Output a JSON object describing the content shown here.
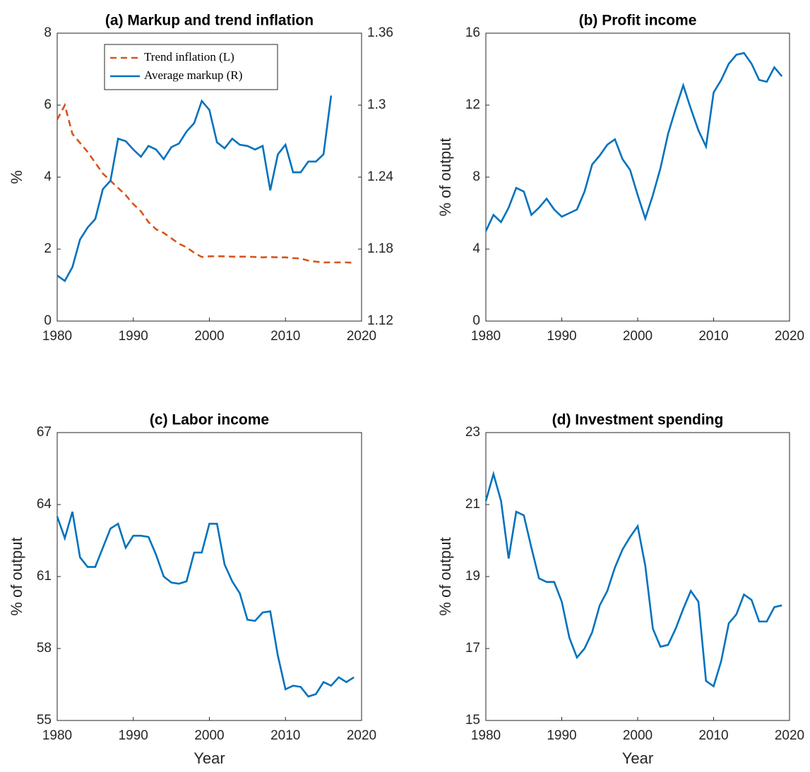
{
  "chart_data": [
    {
      "type": "line",
      "title": "(a) Markup and trend inflation",
      "ylabel": "%",
      "x": [
        1980,
        1981,
        1982,
        1983,
        1984,
        1985,
        1986,
        1987,
        1988,
        1989,
        1990,
        1991,
        1992,
        1993,
        1994,
        1995,
        1996,
        1997,
        1998,
        1999,
        2000,
        2001,
        2002,
        2003,
        2004,
        2005,
        2006,
        2007,
        2008,
        2009,
        2010,
        2011,
        2012,
        2013,
        2014,
        2015,
        2016,
        2017,
        2018,
        2019
      ],
      "series": [
        {
          "name": "Trend inflation (L)",
          "color": "#d95319",
          "linestyle": "dashed",
          "values": [
            5.6,
            6.0,
            5.2,
            4.95,
            4.7,
            4.4,
            4.1,
            3.9,
            3.7,
            3.5,
            3.25,
            3.05,
            2.75,
            2.55,
            2.45,
            2.3,
            2.15,
            2.05,
            1.9,
            1.78,
            1.8,
            1.8,
            1.8,
            1.79,
            1.79,
            1.79,
            1.78,
            1.77,
            1.78,
            1.77,
            1.77,
            1.75,
            1.74,
            1.68,
            1.65,
            1.63,
            1.63,
            1.63,
            1.63,
            1.62
          ]
        },
        {
          "name": "Average markup (R)",
          "color": "#0072bd",
          "linestyle": "solid",
          "axis": "y2",
          "values": [
            1.158,
            1.1535,
            1.165,
            1.188,
            1.198,
            1.205,
            1.23,
            1.237,
            1.272,
            1.27,
            1.263,
            1.257,
            1.266,
            1.263,
            1.255,
            1.265,
            1.268,
            1.278,
            1.285,
            1.3035,
            1.296,
            1.269,
            1.264,
            1.272,
            1.267,
            1.266,
            1.263,
            1.266,
            1.229,
            1.259,
            1.267,
            1.244,
            1.244,
            1.253,
            1.253,
            1.259,
            1.308,
            null,
            null,
            null
          ]
        }
      ],
      "xlim": [
        1980,
        2020
      ],
      "xticks": [
        1980,
        1990,
        2000,
        2010,
        2020
      ],
      "ylim": [
        0,
        8
      ],
      "yticks": [
        0,
        2,
        4,
        6,
        8
      ],
      "y2lim": [
        1.12,
        1.36
      ],
      "y2ticks": [
        1.12,
        1.18,
        1.24,
        1.3,
        1.36
      ],
      "legend": "north"
    },
    {
      "type": "line",
      "title": "(b) Profit income",
      "ylabel": "% of output",
      "x": [
        1980,
        1981,
        1982,
        1983,
        1984,
        1985,
        1986,
        1987,
        1988,
        1989,
        1990,
        1991,
        1992,
        1993,
        1994,
        1995,
        1996,
        1997,
        1998,
        1999,
        2000,
        2001,
        2002,
        2003,
        2004,
        2005,
        2006,
        2007,
        2008,
        2009,
        2010,
        2011,
        2012,
        2013,
        2014,
        2015,
        2016,
        2017,
        2018,
        2019
      ],
      "series": [
        {
          "color": "#0072bd",
          "linestyle": "solid",
          "values": [
            5.0,
            5.9,
            5.5,
            6.3,
            7.4,
            7.2,
            5.9,
            6.3,
            6.8,
            6.2,
            5.8,
            6.0,
            6.2,
            7.2,
            8.7,
            9.2,
            9.8,
            10.1,
            9.0,
            8.4,
            7.0,
            5.7,
            7.0,
            8.5,
            10.4,
            11.8,
            13.1,
            11.8,
            10.6,
            9.7,
            12.7,
            13.4,
            14.3,
            14.8,
            14.9,
            14.3,
            13.4,
            13.3,
            14.1,
            13.6
          ]
        }
      ],
      "xlim": [
        1980,
        2020
      ],
      "xticks": [
        1980,
        1990,
        2000,
        2010,
        2020
      ],
      "ylim": [
        0,
        16
      ],
      "yticks": [
        0,
        4,
        8,
        12,
        16
      ]
    },
    {
      "type": "line",
      "title": "(c) Labor income",
      "ylabel": "% of output",
      "xlabel": "Year",
      "x": [
        1980,
        1981,
        1982,
        1983,
        1984,
        1985,
        1986,
        1987,
        1988,
        1989,
        1990,
        1991,
        1992,
        1993,
        1994,
        1995,
        1996,
        1997,
        1998,
        1999,
        2000,
        2001,
        2002,
        2003,
        2004,
        2005,
        2006,
        2007,
        2008,
        2009,
        2010,
        2011,
        2012,
        2013,
        2014,
        2015,
        2016,
        2017,
        2018,
        2019
      ],
      "series": [
        {
          "color": "#0072bd",
          "linestyle": "solid",
          "values": [
            63.5,
            62.6,
            63.7,
            61.8,
            61.4,
            61.4,
            62.2,
            63.0,
            63.2,
            62.2,
            62.7,
            62.7,
            62.65,
            61.9,
            61.0,
            60.75,
            60.7,
            60.8,
            62.0,
            62.0,
            63.2,
            63.2,
            61.5,
            60.8,
            60.3,
            59.2,
            59.15,
            59.5,
            59.55,
            57.7,
            56.3,
            56.45,
            56.4,
            56.0,
            56.1,
            56.6,
            56.45,
            56.8,
            56.6,
            56.8
          ]
        }
      ],
      "xlim": [
        1980,
        2020
      ],
      "xticks": [
        1980,
        1990,
        2000,
        2010,
        2020
      ],
      "ylim": [
        55,
        67
      ],
      "yticks": [
        55,
        58,
        61,
        64,
        67
      ]
    },
    {
      "type": "line",
      "title": "(d) Investment spending",
      "ylabel": "% of output",
      "xlabel": "Year",
      "x": [
        1980,
        1981,
        1982,
        1983,
        1984,
        1985,
        1986,
        1987,
        1988,
        1989,
        1990,
        1991,
        1992,
        1993,
        1994,
        1995,
        1996,
        1997,
        1998,
        1999,
        2000,
        2001,
        2002,
        2003,
        2004,
        2005,
        2006,
        2007,
        2008,
        2009,
        2010,
        2011,
        2012,
        2013,
        2014,
        2015,
        2016,
        2017,
        2018,
        2019
      ],
      "series": [
        {
          "color": "#0072bd",
          "linestyle": "solid",
          "values": [
            21.1,
            21.85,
            21.1,
            19.5,
            20.8,
            20.7,
            19.8,
            18.95,
            18.85,
            18.85,
            18.3,
            17.3,
            16.75,
            17.0,
            17.45,
            18.2,
            18.6,
            19.25,
            19.75,
            20.1,
            20.4,
            19.3,
            17.55,
            17.05,
            17.1,
            17.55,
            18.1,
            18.6,
            18.3,
            16.1,
            15.95,
            16.65,
            17.7,
            17.95,
            18.5,
            18.35,
            17.75,
            17.75,
            18.15,
            18.2
          ]
        }
      ],
      "xlim": [
        1980,
        2020
      ],
      "xticks": [
        1980,
        1990,
        2000,
        2010,
        2020
      ],
      "ylim": [
        15,
        23
      ],
      "yticks": [
        15,
        17,
        19,
        21,
        23
      ]
    }
  ]
}
